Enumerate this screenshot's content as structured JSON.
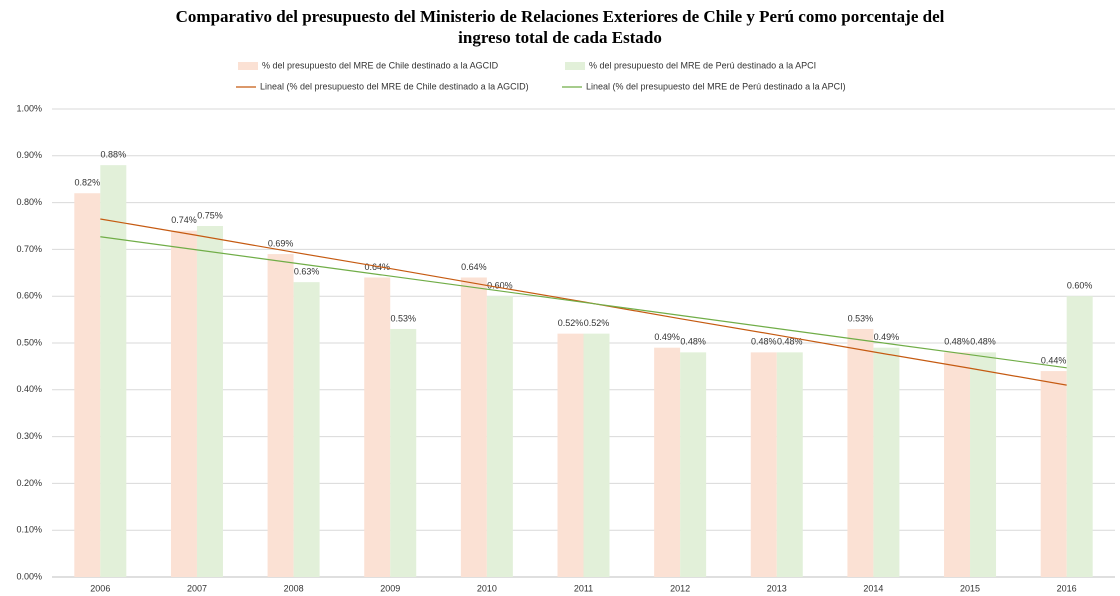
{
  "chart_data": {
    "type": "bar",
    "title": [
      "Comparativo del presupuesto del Ministerio de Relaciones Exteriores de Chile y Perú como porcentaje del",
      "ingreso total de cada Estado"
    ],
    "categories": [
      "2006",
      "2007",
      "2008",
      "2009",
      "2010",
      "2011",
      "2012",
      "2013",
      "2014",
      "2015",
      "2016"
    ],
    "series": [
      {
        "name": "% del presupuesto del MRE de Chile destinado a la AGCID",
        "color": "#fbe1d4",
        "values": [
          0.82,
          0.74,
          0.69,
          0.64,
          0.64,
          0.52,
          0.49,
          0.48,
          0.53,
          0.48,
          0.44
        ],
        "value_labels": [
          "0.82%",
          "0.74%",
          "0.69%",
          "0.64%",
          "0.64%",
          "0.52%",
          "0.49%",
          "0.48%",
          "0.53%",
          "0.48%",
          "0.44%"
        ]
      },
      {
        "name": "% del presupuesto del MRE de Perú destinado a la APCI",
        "color": "#e2f0d9",
        "values": [
          0.88,
          0.75,
          0.63,
          0.53,
          0.6,
          0.52,
          0.48,
          0.48,
          0.49,
          0.48,
          0.6
        ],
        "value_labels": [
          "0.88%",
          "0.75%",
          "0.63%",
          "0.53%",
          "0.60%",
          "0.52%",
          "0.48%",
          "0.48%",
          "0.49%",
          "0.48%",
          "0.60%"
        ]
      },
      {
        "name": "Lineal (% del presupuesto del MRE de Chile destinado a la AGCID)",
        "type": "line",
        "color": "#c55a11",
        "values": [
          0.765,
          0.73,
          0.694,
          0.659,
          0.623,
          0.588,
          0.552,
          0.517,
          0.481,
          0.446,
          0.41
        ]
      },
      {
        "name": "Lineal (% del presupuesto del MRE de Perú destinado a la APCI)",
        "type": "line",
        "color": "#70ad47",
        "values": [
          0.727,
          0.699,
          0.671,
          0.643,
          0.615,
          0.587,
          0.559,
          0.531,
          0.503,
          0.475,
          0.447
        ]
      }
    ],
    "ylim": [
      0,
      1
    ],
    "yticks": [
      {
        "value": 0,
        "label": "0.00%"
      },
      {
        "value": 0.1,
        "label": "0.10%"
      },
      {
        "value": 0.2,
        "label": "0.20%"
      },
      {
        "value": 0.3,
        "label": "0.30%"
      },
      {
        "value": 0.4,
        "label": "0.40%"
      },
      {
        "value": 0.5,
        "label": "0.50%"
      },
      {
        "value": 0.6,
        "label": "0.60%"
      },
      {
        "value": 0.7,
        "label": "0.70%"
      },
      {
        "value": 0.8,
        "label": "0.80%"
      },
      {
        "value": 0.9,
        "label": "0.90%"
      },
      {
        "value": 1,
        "label": "1.00%"
      }
    ],
    "grid": true
  }
}
